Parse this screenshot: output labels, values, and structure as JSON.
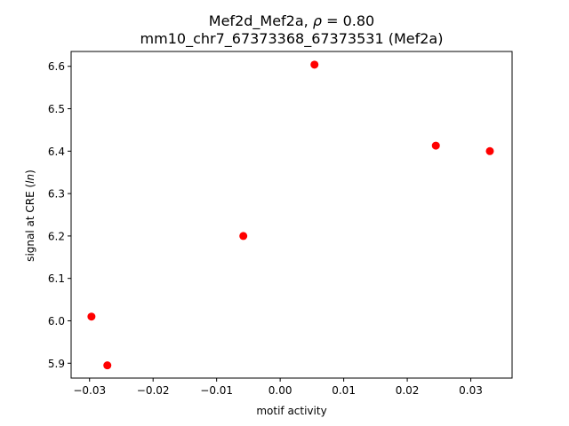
{
  "chart_data": {
    "type": "scatter",
    "title_line1_prefix": "Mef2d_Mef2a, ",
    "title_line1_rho": "ρ",
    "title_line1_suffix": " = 0.80",
    "title_line2": "mm10_chr7_67373368_67373531 (Mef2a)",
    "xlabel": "motif activity",
    "ylabel_prefix": "signal at CRE (",
    "ylabel_italic": "ln",
    "ylabel_suffix": ")",
    "xlim": [
      -0.0329,
      0.0365
    ],
    "ylim": [
      5.865,
      6.635
    ],
    "xticks": [
      -0.03,
      -0.02,
      -0.01,
      0.0,
      0.01,
      0.02,
      0.03
    ],
    "xtick_labels": [
      "−0.03",
      "−0.02",
      "−0.01",
      "0.00",
      "0.01",
      "0.02",
      "0.03"
    ],
    "yticks": [
      5.9,
      6.0,
      6.1,
      6.2,
      6.3,
      6.4,
      6.5,
      6.6
    ],
    "ytick_labels": [
      "5.9",
      "6.0",
      "6.1",
      "6.2",
      "6.3",
      "6.4",
      "6.5",
      "6.6"
    ],
    "marker_color": "#ff0000",
    "points": [
      {
        "x": -0.0297,
        "y": 6.01
      },
      {
        "x": -0.0272,
        "y": 5.895
      },
      {
        "x": -0.0058,
        "y": 6.2
      },
      {
        "x": 0.0054,
        "y": 6.604
      },
      {
        "x": 0.0245,
        "y": 6.413
      },
      {
        "x": 0.033,
        "y": 6.4
      }
    ]
  }
}
